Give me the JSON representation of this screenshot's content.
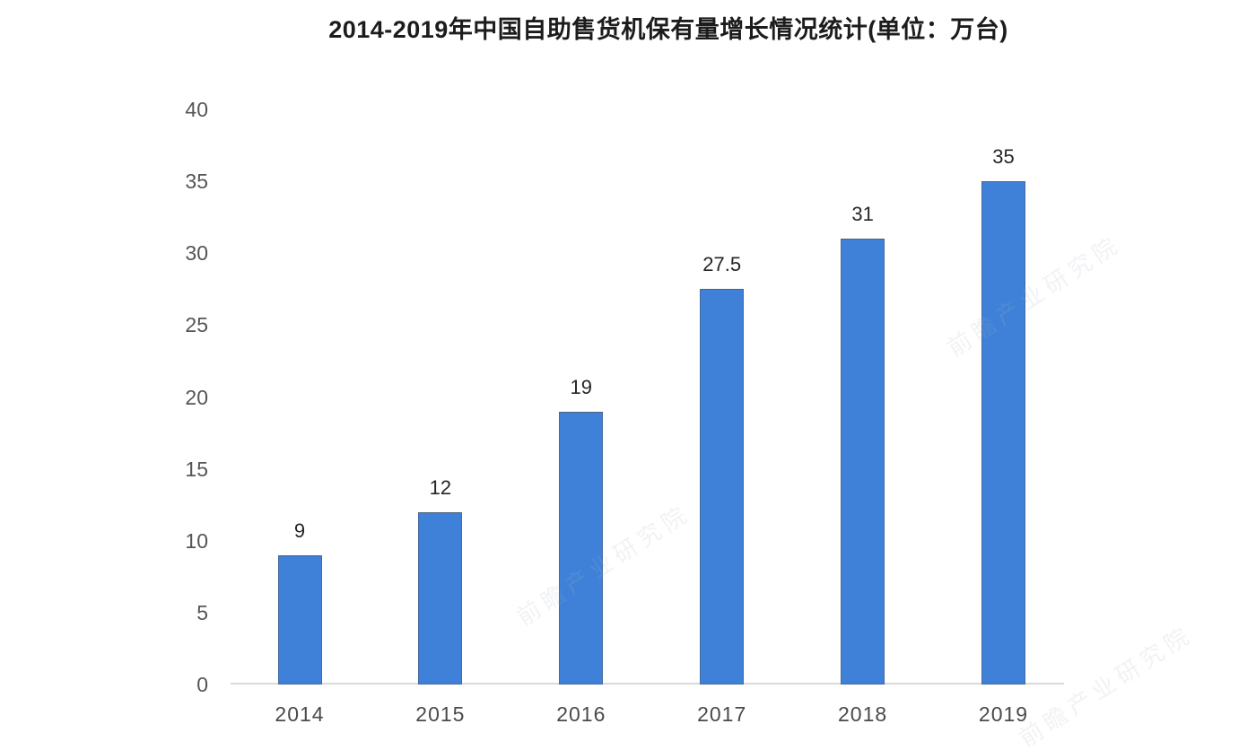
{
  "title": "2014-2019年中国自助售货机保有量增长情况统计(单位：万台)",
  "chart_data": {
    "type": "bar",
    "title": "2014-2019年中国自助售货机保有量增长情况统计(单位：万台)",
    "categories": [
      "2014",
      "2015",
      "2016",
      "2017",
      "2018",
      "2019"
    ],
    "values": [
      9,
      12,
      19,
      27.5,
      31,
      35
    ],
    "value_labels": [
      "9",
      "12",
      "19",
      "27.5",
      "31",
      "35"
    ],
    "xlabel": "",
    "ylabel": "",
    "unit": "万台",
    "ylim": [
      0,
      40
    ],
    "yticks": [
      0,
      5,
      10,
      15,
      20,
      25,
      30,
      35,
      40
    ],
    "grid": false,
    "legend_position": "none",
    "bar_color": "#3f81d8",
    "bar_border_color": "#4a6f9e",
    "axis_line_color": "#d9d9d9",
    "tick_label_color": "#555555",
    "category_label_color": "#4a4a4a",
    "value_label_color": "#262626",
    "background_color": "#ffffff"
  },
  "watermark": {
    "text": "前瞻产业研究院",
    "color": "#aab4c4"
  }
}
